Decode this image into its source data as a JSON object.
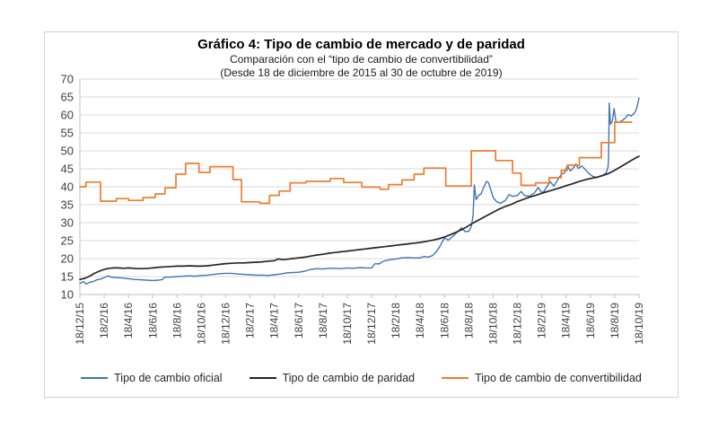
{
  "chart_data": {
    "type": "line",
    "title": "Gráfico 4: Tipo de cambio de mercado y de paridad",
    "subtitle1": "Comparación con el “tipo de cambio de convertibilidad”",
    "subtitle2": "(Desde 18 de diciembre de 2015 al 30 de octubre de 2019)",
    "xlabel": "",
    "ylabel": "",
    "ylim": [
      10,
      70
    ],
    "y_ticks": [
      10,
      15,
      20,
      25,
      30,
      35,
      40,
      45,
      50,
      55,
      60,
      65,
      70
    ],
    "x_range": [
      0,
      46
    ],
    "x_tick_step_months": 2,
    "grid": "horizontal",
    "legend_position": "bottom",
    "x_tick_labels": [
      "18/12/15",
      "18/2/16",
      "18/4/16",
      "18/6/16",
      "18/8/16",
      "18/10/16",
      "18/12/16",
      "18/2/17",
      "18/4/17",
      "18/6/17",
      "18/8/17",
      "18/10/17",
      "18/12/17",
      "18/2/18",
      "18/4/18",
      "18/6/18",
      "18/8/18",
      "18/10/18",
      "18/12/18",
      "18/2/19",
      "18/4/19",
      "18/6/19",
      "18/8/19",
      "18/10/19"
    ],
    "series": [
      {
        "name": "Tipo de cambio oficial",
        "color": "#4176ae",
        "width": 1.4,
        "mode": "line",
        "points": [
          [
            0,
            13.1
          ],
          [
            0.3,
            13.6
          ],
          [
            0.5,
            12.9
          ],
          [
            0.8,
            13.4
          ],
          [
            1.1,
            13.6
          ],
          [
            1.4,
            14.1
          ],
          [
            1.8,
            14.4
          ],
          [
            2.3,
            15.2
          ],
          [
            2.6,
            14.8
          ],
          [
            3,
            14.7
          ],
          [
            3.5,
            14.6
          ],
          [
            4,
            14.4
          ],
          [
            4.5,
            14.2
          ],
          [
            5,
            14.1
          ],
          [
            5.5,
            14
          ],
          [
            6,
            13.9
          ],
          [
            6.5,
            14
          ],
          [
            6.8,
            14.2
          ],
          [
            7,
            14.9
          ],
          [
            7.3,
            14.8
          ],
          [
            7.6,
            14.9
          ],
          [
            8,
            15
          ],
          [
            8.5,
            15.1
          ],
          [
            9,
            15.2
          ],
          [
            9.5,
            15.1
          ],
          [
            10,
            15.3
          ],
          [
            10.5,
            15.4
          ],
          [
            11,
            15.6
          ],
          [
            11.5,
            15.8
          ],
          [
            12,
            15.9
          ],
          [
            12.5,
            15.9
          ],
          [
            13,
            15.7
          ],
          [
            13.5,
            15.6
          ],
          [
            14,
            15.5
          ],
          [
            14.5,
            15.4
          ],
          [
            15,
            15.4
          ],
          [
            15.5,
            15.3
          ],
          [
            16,
            15.5
          ],
          [
            16.5,
            15.7
          ],
          [
            17,
            16
          ],
          [
            17.5,
            16.1
          ],
          [
            18,
            16.2
          ],
          [
            18.5,
            16.5
          ],
          [
            19,
            17
          ],
          [
            19.5,
            17.2
          ],
          [
            20,
            17.1
          ],
          [
            20.5,
            17.3
          ],
          [
            21,
            17.3
          ],
          [
            21.5,
            17.2
          ],
          [
            22,
            17.4
          ],
          [
            22.5,
            17.3
          ],
          [
            23,
            17.5
          ],
          [
            23.5,
            17.4
          ],
          [
            24,
            17.4
          ],
          [
            24.3,
            18.6
          ],
          [
            24.6,
            18.5
          ],
          [
            25,
            19.3
          ],
          [
            25.4,
            19.6
          ],
          [
            26,
            19.9
          ],
          [
            26.5,
            20.2
          ],
          [
            27,
            20.3
          ],
          [
            27.5,
            20.2
          ],
          [
            28,
            20.2
          ],
          [
            28.3,
            20.6
          ],
          [
            28.6,
            20.4
          ],
          [
            29,
            20.8
          ],
          [
            29.3,
            21.8
          ],
          [
            29.6,
            23.3
          ],
          [
            30,
            25.8
          ],
          [
            30.3,
            25.1
          ],
          [
            30.7,
            26.3
          ],
          [
            31,
            27.2
          ],
          [
            31.4,
            28.6
          ],
          [
            31.7,
            27.5
          ],
          [
            32,
            27.6
          ],
          [
            32.2,
            28.9
          ],
          [
            32.35,
            32
          ],
          [
            32.45,
            40.5
          ],
          [
            32.6,
            36.4
          ],
          [
            32.8,
            37.6
          ],
          [
            33,
            38
          ],
          [
            33.2,
            39.6
          ],
          [
            33.45,
            41.5
          ],
          [
            33.6,
            41.2
          ],
          [
            33.8,
            39.2
          ],
          [
            34,
            37
          ],
          [
            34.3,
            35.8
          ],
          [
            34.6,
            35.4
          ],
          [
            35,
            36.2
          ],
          [
            35.3,
            37.8
          ],
          [
            35.6,
            37.3
          ],
          [
            36,
            37.6
          ],
          [
            36.3,
            38.7
          ],
          [
            36.6,
            37.5
          ],
          [
            37,
            37.4
          ],
          [
            37.4,
            38.3
          ],
          [
            37.7,
            39.8
          ],
          [
            37.9,
            38.8
          ],
          [
            38.1,
            38.3
          ],
          [
            38.4,
            39.9
          ],
          [
            38.7,
            41.4
          ],
          [
            39,
            40.2
          ],
          [
            39.3,
            41.9
          ],
          [
            39.6,
            43.4
          ],
          [
            39.9,
            44
          ],
          [
            40.1,
            45.9
          ],
          [
            40.35,
            44.4
          ],
          [
            40.6,
            45.3
          ],
          [
            40.8,
            46.3
          ],
          [
            41,
            45.1
          ],
          [
            41.3,
            45.8
          ],
          [
            41.6,
            44.7
          ],
          [
            41.9,
            43.6
          ],
          [
            42.2,
            42.9
          ],
          [
            42.5,
            42.6
          ],
          [
            42.8,
            43
          ],
          [
            43.1,
            43.3
          ],
          [
            43.3,
            43.9
          ],
          [
            43.45,
            45.5
          ],
          [
            43.5,
            48
          ],
          [
            43.55,
            63.3
          ],
          [
            43.65,
            57.4
          ],
          [
            43.8,
            58.2
          ],
          [
            43.95,
            61.8
          ],
          [
            44.1,
            58
          ],
          [
            44.3,
            57.9
          ],
          [
            44.6,
            58.4
          ],
          [
            44.9,
            59.2
          ],
          [
            45.1,
            60.1
          ],
          [
            45.35,
            59.7
          ],
          [
            45.55,
            60.3
          ],
          [
            45.7,
            60.9
          ],
          [
            45.82,
            62
          ],
          [
            46,
            64.7
          ]
        ]
      },
      {
        "name": "Tipo de cambio de paridad",
        "color": "#262626",
        "width": 1.7,
        "mode": "line",
        "points": [
          [
            0,
            14.2
          ],
          [
            0.4,
            14.5
          ],
          [
            0.8,
            15.1
          ],
          [
            1.2,
            15.9
          ],
          [
            1.6,
            16.5
          ],
          [
            2,
            17
          ],
          [
            2.4,
            17.3
          ],
          [
            2.8,
            17.4
          ],
          [
            3.2,
            17.4
          ],
          [
            3.6,
            17.3
          ],
          [
            4,
            17.4
          ],
          [
            4.4,
            17.3
          ],
          [
            4.8,
            17.2
          ],
          [
            5.2,
            17.2
          ],
          [
            5.6,
            17.3
          ],
          [
            6,
            17.4
          ],
          [
            6.5,
            17.6
          ],
          [
            7,
            17.7
          ],
          [
            7.5,
            17.8
          ],
          [
            8,
            17.9
          ],
          [
            8.5,
            17.9
          ],
          [
            9,
            18
          ],
          [
            9.5,
            17.9
          ],
          [
            10,
            17.9
          ],
          [
            10.5,
            18
          ],
          [
            11,
            18.2
          ],
          [
            11.5,
            18.4
          ],
          [
            12,
            18.6
          ],
          [
            12.5,
            18.7
          ],
          [
            13,
            18.8
          ],
          [
            13.5,
            18.8
          ],
          [
            14,
            18.9
          ],
          [
            14.5,
            19
          ],
          [
            15,
            19.1
          ],
          [
            15.5,
            19.3
          ],
          [
            16,
            19.4
          ],
          [
            16.3,
            19.9
          ],
          [
            16.7,
            19.7
          ],
          [
            17,
            19.8
          ],
          [
            17.5,
            20
          ],
          [
            18,
            20.2
          ],
          [
            18.5,
            20.4
          ],
          [
            19,
            20.7
          ],
          [
            19.5,
            21
          ],
          [
            20,
            21.2
          ],
          [
            20.5,
            21.5
          ],
          [
            21,
            21.7
          ],
          [
            21.5,
            21.9
          ],
          [
            22,
            22.1
          ],
          [
            22.5,
            22.3
          ],
          [
            23,
            22.5
          ],
          [
            23.5,
            22.7
          ],
          [
            24,
            22.9
          ],
          [
            24.5,
            23.1
          ],
          [
            25,
            23.3
          ],
          [
            25.5,
            23.5
          ],
          [
            26,
            23.7
          ],
          [
            26.5,
            23.9
          ],
          [
            27,
            24.1
          ],
          [
            27.5,
            24.3
          ],
          [
            28,
            24.5
          ],
          [
            28.5,
            24.8
          ],
          [
            29,
            25.1
          ],
          [
            29.5,
            25.5
          ],
          [
            30,
            26
          ],
          [
            30.5,
            26.7
          ],
          [
            31,
            27.4
          ],
          [
            31.5,
            28.2
          ],
          [
            32,
            29.2
          ],
          [
            32.5,
            30.2
          ],
          [
            33,
            31.1
          ],
          [
            33.5,
            32
          ],
          [
            34,
            32.9
          ],
          [
            34.5,
            33.8
          ],
          [
            35,
            34.5
          ],
          [
            35.5,
            35.1
          ],
          [
            36,
            35.9
          ],
          [
            36.5,
            36.5
          ],
          [
            37,
            37.1
          ],
          [
            37.5,
            37.6
          ],
          [
            38,
            38.2
          ],
          [
            38.5,
            38.7
          ],
          [
            39,
            39.2
          ],
          [
            39.5,
            39.7
          ],
          [
            40,
            40.3
          ],
          [
            40.5,
            40.8
          ],
          [
            41,
            41.4
          ],
          [
            41.5,
            41.9
          ],
          [
            42,
            42.3
          ],
          [
            42.5,
            42.6
          ],
          [
            43,
            43.1
          ],
          [
            43.5,
            43.7
          ],
          [
            44,
            44.6
          ],
          [
            44.5,
            45.6
          ],
          [
            45,
            46.6
          ],
          [
            45.5,
            47.6
          ],
          [
            46,
            48.5
          ]
        ]
      },
      {
        "name": "Tipo de cambio de convertibilidad",
        "color": "#ed7d31",
        "width": 1.7,
        "mode": "step",
        "points": [
          [
            0,
            40
          ],
          [
            0.5,
            41.3
          ],
          [
            1.7,
            36
          ],
          [
            3,
            36.7
          ],
          [
            4,
            36.2
          ],
          [
            5.2,
            37
          ],
          [
            6.2,
            38
          ],
          [
            7,
            39.7
          ],
          [
            7.9,
            43.5
          ],
          [
            8.7,
            46.5
          ],
          [
            9.8,
            44
          ],
          [
            10.7,
            45.6
          ],
          [
            12.6,
            42
          ],
          [
            13.3,
            35.8
          ],
          [
            14.8,
            35.4
          ],
          [
            15.6,
            37.6
          ],
          [
            16.4,
            38.8
          ],
          [
            17.3,
            41.1
          ],
          [
            18.6,
            41.5
          ],
          [
            20.6,
            42.3
          ],
          [
            21.7,
            41.2
          ],
          [
            23.2,
            39.9
          ],
          [
            24.7,
            39.3
          ],
          [
            25.4,
            40.6
          ],
          [
            26.5,
            41.9
          ],
          [
            27.5,
            43.5
          ],
          [
            28.3,
            45.2
          ],
          [
            30.1,
            40.2
          ],
          [
            32.2,
            50
          ],
          [
            34.2,
            47.3
          ],
          [
            35.6,
            43.8
          ],
          [
            36.3,
            40.4
          ],
          [
            37.5,
            41.1
          ],
          [
            38.6,
            42.5
          ],
          [
            39.6,
            44.6
          ],
          [
            40.1,
            46
          ],
          [
            41.1,
            48.1
          ],
          [
            42.9,
            52.3
          ],
          [
            44,
            58
          ],
          [
            45.4,
            58
          ]
        ]
      }
    ],
    "colors": {
      "gridline": "#d9d9d9",
      "axis": "#bfbfbf",
      "tick_label": "#404040"
    }
  }
}
